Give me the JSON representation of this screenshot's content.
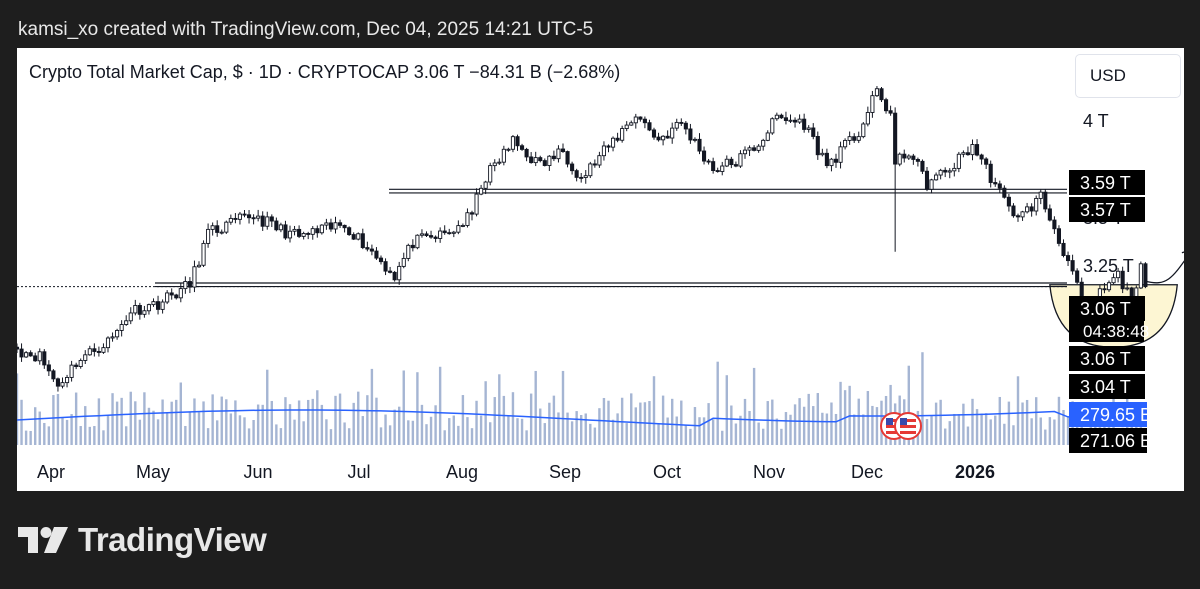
{
  "header": {
    "caption": "kamsi_xo created with TradingView.com, Dec 04, 2025 14:21 UTC-5"
  },
  "chart_header": {
    "title": "Crypto Total Market Cap, $ · 1D · CRYPTOCAP  3.06 T  −84.31 B (−2.68%)",
    "currency": "USD"
  },
  "footer": {
    "brand": "TradingView"
  },
  "colors": {
    "candle": "#131722",
    "volume": "#8fa3c8",
    "volume_ma": "#2962ff",
    "cup_fill": "#fdf6d3",
    "label_bg": "#000000",
    "label_blue": "#2962ff"
  },
  "chart_data": {
    "type": "candlestick",
    "title": "Crypto Total Market Cap, $ · 1D · CRYPTOCAP",
    "x_ticks": [
      "Apr",
      "May",
      "Jun",
      "Jul",
      "Aug",
      "Sep",
      "Oct",
      "Nov",
      "Dec",
      "2026"
    ],
    "y_ticks": [
      "4 T",
      "3.5 T",
      "3.25 T"
    ],
    "ylim": [
      2.35,
      4.2
    ],
    "y_unit": "T USD",
    "close_series": {
      "start_date": "2025-03-31",
      "end_date": "2025-12-04",
      "keypoints": [
        [
          "2025-03-31",
          2.72
        ],
        [
          "2025-04-05",
          2.68
        ],
        [
          "2025-04-09",
          2.52
        ],
        [
          "2025-04-13",
          2.65
        ],
        [
          "2025-04-21",
          2.78
        ],
        [
          "2025-04-25",
          2.93
        ],
        [
          "2025-05-01",
          2.97
        ],
        [
          "2025-05-08",
          3.07
        ],
        [
          "2025-05-12",
          3.35
        ],
        [
          "2025-05-22",
          3.45
        ],
        [
          "2025-05-27",
          3.38
        ],
        [
          "2025-06-01",
          3.33
        ],
        [
          "2025-06-11",
          3.4
        ],
        [
          "2025-06-17",
          3.25
        ],
        [
          "2025-06-22",
          3.12
        ],
        [
          "2025-06-26",
          3.3
        ],
        [
          "2025-07-04",
          3.35
        ],
        [
          "2025-07-09",
          3.45
        ],
        [
          "2025-07-11",
          3.62
        ],
        [
          "2025-07-14",
          3.72
        ],
        [
          "2025-07-18",
          3.85
        ],
        [
          "2025-07-24",
          3.72
        ],
        [
          "2025-07-29",
          3.8
        ],
        [
          "2025-08-02",
          3.65
        ],
        [
          "2025-08-08",
          3.82
        ],
        [
          "2025-08-14",
          4.0
        ],
        [
          "2025-08-19",
          3.86
        ],
        [
          "2025-08-24",
          3.95
        ],
        [
          "2025-08-31",
          3.7
        ],
        [
          "2025-09-05",
          3.74
        ],
        [
          "2025-09-10",
          3.84
        ],
        [
          "2025-09-14",
          3.98
        ],
        [
          "2025-09-20",
          3.95
        ],
        [
          "2025-09-25",
          3.72
        ],
        [
          "2025-10-02",
          3.9
        ],
        [
          "2025-10-06",
          4.12
        ],
        [
          "2025-10-09",
          4.0
        ],
        [
          "2025-10-10",
          3.72
        ],
        [
          "2025-10-13",
          3.8
        ],
        [
          "2025-10-17",
          3.62
        ],
        [
          "2025-10-22",
          3.7
        ],
        [
          "2025-10-27",
          3.83
        ],
        [
          "2025-10-31",
          3.66
        ],
        [
          "2025-11-04",
          3.48
        ],
        [
          "2025-11-07",
          3.45
        ],
        [
          "2025-11-11",
          3.55
        ],
        [
          "2025-11-17",
          3.2
        ],
        [
          "2025-11-21",
          2.9
        ],
        [
          "2025-11-24",
          3.02
        ],
        [
          "2025-11-28",
          3.12
        ],
        [
          "2025-12-01",
          2.98
        ],
        [
          "2025-12-03",
          3.15
        ],
        [
          "2025-12-04",
          3.06
        ]
      ]
    },
    "wicks": [
      {
        "date": "2025-10-10",
        "low": 3.25
      },
      {
        "date": "2025-11-21",
        "low": 2.82
      },
      {
        "date": "2025-12-01",
        "low": 2.86
      }
    ],
    "horizontal_levels": [
      {
        "value": 3.58,
        "kind": "double line"
      },
      {
        "value": 3.07,
        "kind": "double line"
      },
      {
        "value": 3.06,
        "kind": "dotted line"
      }
    ],
    "price_labels": [
      {
        "text": "3.59 T",
        "style": "black"
      },
      {
        "text": "3.57 T",
        "style": "black"
      },
      {
        "text": "3.06 T",
        "style": "black"
      },
      {
        "text": "04:38:48",
        "style": "countdown"
      },
      {
        "text": "3.06 T",
        "style": "black"
      },
      {
        "text": "3.04 T",
        "style": "black"
      },
      {
        "text": "279.65 B",
        "style": "blue"
      },
      {
        "text": "271.06 B",
        "style": "black"
      }
    ],
    "volume": {
      "ma_label": "279.65 B",
      "last_label": "271.06 B"
    },
    "annotations": [
      {
        "type": "down-arrow",
        "date": "2025-12-17",
        "value": 3.7
      },
      {
        "type": "curved-up-arrow",
        "from_date": "2025-12-04",
        "to_date": "2025-12-14",
        "from_value": 3.09,
        "to_value": 3.25
      },
      {
        "type": "cup-shape",
        "from_date": "2025-11-13",
        "to_date": "2025-12-11",
        "bottom_value": 2.73,
        "top_value": 3.07
      }
    ]
  }
}
